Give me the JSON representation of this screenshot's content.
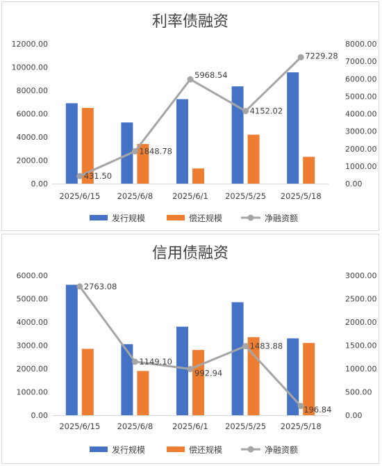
{
  "chart_data": [
    {
      "type": "bar",
      "title": "利率债融资",
      "categories": [
        "2025/6/15",
        "2025/6/8",
        "2025/6/1",
        "2025/5/25",
        "2025/5/18"
      ],
      "series": [
        {
          "name": "发行规模",
          "kind": "bar",
          "axis": "left",
          "color": "#4472c4",
          "values": [
            6900,
            5250,
            7250,
            8350,
            9550
          ]
        },
        {
          "name": "偿还规模",
          "kind": "bar",
          "axis": "left",
          "color": "#ed7d31",
          "values": [
            6500,
            3400,
            1300,
            4200,
            2300
          ]
        },
        {
          "name": "净融资额",
          "kind": "line",
          "axis": "right",
          "color": "#a5a5a5",
          "values": [
            431.5,
            1848.78,
            5968.54,
            4152.02,
            7229.28
          ]
        }
      ],
      "data_labels": [
        "431.50",
        "1848.78",
        "5968.54",
        "4152.02",
        "7229.28"
      ],
      "ylim": [
        0,
        12000
      ],
      "y_ticks": [
        "0.00",
        "2000.00",
        "4000.00",
        "6000.00",
        "8000.00",
        "10000.00",
        "12000.00"
      ],
      "y2lim": [
        0,
        8000
      ],
      "y2_ticks": [
        "0.00",
        "1000.00",
        "2000.00",
        "3000.00",
        "4000.00",
        "5000.00",
        "6000.00",
        "7000.00",
        "8000.00"
      ],
      "grid": false,
      "legend_position": "bottom"
    },
    {
      "type": "bar",
      "title": "信用债融资",
      "categories": [
        "2025/6/15",
        "2025/6/8",
        "2025/6/1",
        "2025/5/25",
        "2025/5/18"
      ],
      "series": [
        {
          "name": "发行规模",
          "kind": "bar",
          "axis": "left",
          "color": "#4472c4",
          "values": [
            5600,
            3050,
            3800,
            4850,
            3300
          ]
        },
        {
          "name": "偿还规模",
          "kind": "bar",
          "axis": "left",
          "color": "#ed7d31",
          "values": [
            2850,
            1900,
            2800,
            3350,
            3100
          ]
        },
        {
          "name": "净融资额",
          "kind": "line",
          "axis": "right",
          "color": "#a5a5a5",
          "values": [
            2763.08,
            1149.1,
            992.94,
            1483.88,
            196.84
          ]
        }
      ],
      "data_labels": [
        "2763.08",
        "1149.10",
        "992.94",
        "1483.88",
        "196.84"
      ],
      "ylim": [
        0,
        6000
      ],
      "y_ticks": [
        "0.00",
        "1000.00",
        "2000.00",
        "3000.00",
        "4000.00",
        "5000.00",
        "6000.00"
      ],
      "y2lim": [
        0,
        3000
      ],
      "y2_ticks": [
        "0.00",
        "500.00",
        "1000.00",
        "1500.00",
        "2000.00",
        "2500.00",
        "3000.00"
      ],
      "grid": false,
      "legend_position": "bottom"
    }
  ]
}
